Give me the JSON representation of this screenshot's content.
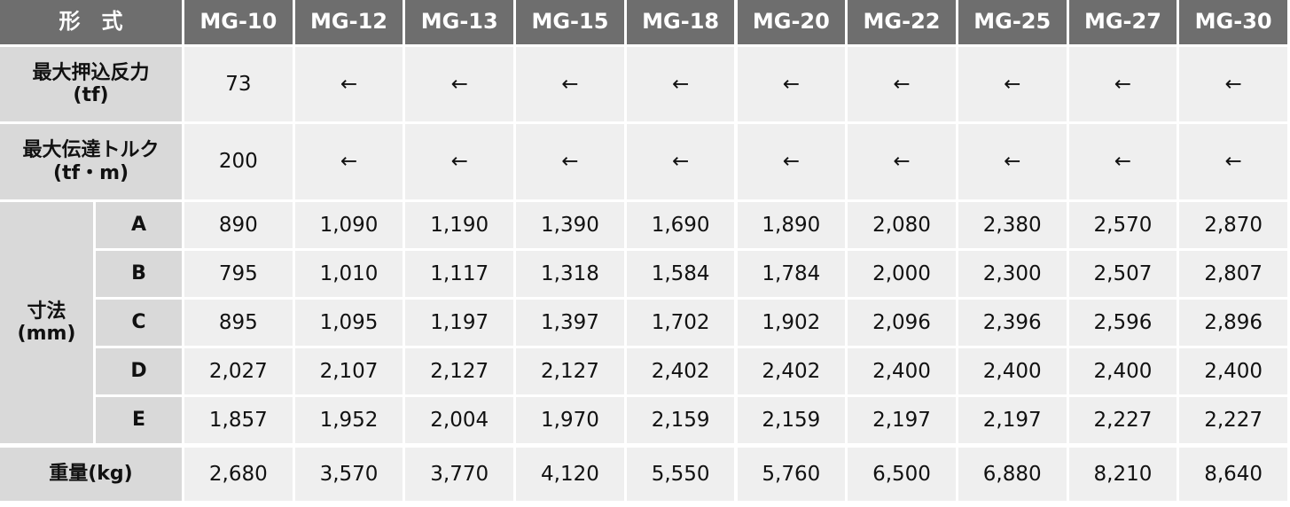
{
  "header": {
    "label": "形　式",
    "models": [
      "MG-10",
      "MG-12",
      "MG-13",
      "MG-15",
      "MG-18",
      "MG-20",
      "MG-22",
      "MG-25",
      "MG-27",
      "MG-30"
    ]
  },
  "rows": [
    {
      "label_lines": [
        "最大押込反力",
        "(tf)"
      ],
      "values": [
        "73",
        "←",
        "←",
        "←",
        "←",
        "←",
        "←",
        "←",
        "←",
        "←"
      ]
    },
    {
      "label_lines": [
        "最大伝達トルク",
        "(tf・m)"
      ],
      "values": [
        "200",
        "←",
        "←",
        "←",
        "←",
        "←",
        "←",
        "←",
        "←",
        "←"
      ]
    }
  ],
  "dimensions": {
    "label_lines": [
      "寸法",
      "(mm)"
    ],
    "rows": [
      {
        "label": "A",
        "values": [
          "890",
          "1,090",
          "1,190",
          "1,390",
          "1,690",
          "1,890",
          "2,080",
          "2,380",
          "2,570",
          "2,870"
        ]
      },
      {
        "label": "B",
        "values": [
          "795",
          "1,010",
          "1,117",
          "1,318",
          "1,584",
          "1,784",
          "2,000",
          "2,300",
          "2,507",
          "2,807"
        ]
      },
      {
        "label": "C",
        "values": [
          "895",
          "1,095",
          "1,197",
          "1,397",
          "1,702",
          "1,902",
          "2,096",
          "2,396",
          "2,596",
          "2,896"
        ]
      },
      {
        "label": "D",
        "values": [
          "2,027",
          "2,107",
          "2,127",
          "2,127",
          "2,402",
          "2,402",
          "2,400",
          "2,400",
          "2,400",
          "2,400"
        ]
      },
      {
        "label": "E",
        "values": [
          "1,857",
          "1,952",
          "2,004",
          "1,970",
          "2,159",
          "2,159",
          "2,197",
          "2,197",
          "2,227",
          "2,227"
        ]
      }
    ]
  },
  "weight": {
    "label": "重量(kg)",
    "values": [
      "2,680",
      "3,570",
      "3,770",
      "4,120",
      "5,550",
      "5,760",
      "6,500",
      "6,880",
      "8,210",
      "8,640"
    ]
  }
}
